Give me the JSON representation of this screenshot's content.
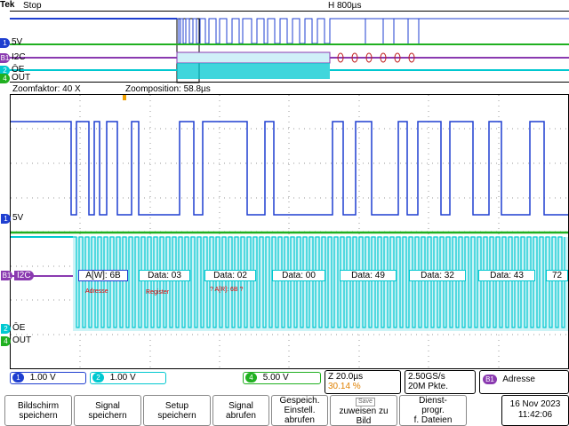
{
  "status": {
    "brand": "Tek",
    "state": "Stop",
    "horizontal": "H 800µs"
  },
  "overview_channels": [
    {
      "num": "1",
      "label": "5V",
      "color": "#1f3fd0"
    },
    {
      "num": "B1",
      "label": "I2C",
      "color": "#8a3ab0"
    },
    {
      "num": "2",
      "label": "ŌE",
      "color": "#00c8d0"
    },
    {
      "num": "4",
      "label": "OUT",
      "color": "#20b020"
    }
  ],
  "zoom": {
    "factor": "Zoomfaktor: 40 X",
    "position": "Zoomposition: 58.8µs"
  },
  "main_channels": [
    {
      "num": "1",
      "label": "5V",
      "color": "#1f3fd0"
    },
    {
      "num": "B1",
      "label": "I2C",
      "color": "#8a3ab0"
    },
    {
      "num": "2",
      "label": "ŌE",
      "color": "#00c8d0"
    },
    {
      "num": "4",
      "label": "OUT",
      "color": "#20b020"
    }
  ],
  "bus_frames": [
    {
      "text": "A[W]: 6B"
    },
    {
      "text": "Data: 03"
    },
    {
      "text": "Data: 02"
    },
    {
      "text": "Data: 00"
    },
    {
      "text": "Data: 49"
    },
    {
      "text": "Data: 32"
    },
    {
      "text": "Data: 43"
    },
    {
      "text": "72"
    }
  ],
  "annotations": [
    "Adresse",
    "Register",
    "? A[R]: 6B ?"
  ],
  "channel_settings": [
    {
      "num": "1",
      "value": "1.00 V",
      "color": "#1f3fd0"
    },
    {
      "num": "2",
      "value": "1.00 V",
      "color": "#00c8d0"
    },
    {
      "num": "4",
      "value": "5.00 V",
      "color": "#20b020"
    }
  ],
  "timebase": {
    "zoom": "Z 20.0µs",
    "trigger": "30.14 %"
  },
  "acquisition": {
    "rate": "2.50GS/s",
    "points": "20M Pkte."
  },
  "bus_trigger": {
    "bus": "B1",
    "type": "Adresse"
  },
  "softkeys": [
    "Bildschirm\nspeichern",
    "Signal\nspeichern",
    "Setup\nspeichern",
    "Signal\nabrufen",
    "Gespeich.\nEinstell.\nabrufen",
    "zuweisen zu\nBild",
    "Dienst-\nprogr.\nf. Dateien"
  ],
  "save_badge": "Save",
  "datetime": {
    "date": "16 Nov 2023",
    "time": "11:42:06"
  }
}
